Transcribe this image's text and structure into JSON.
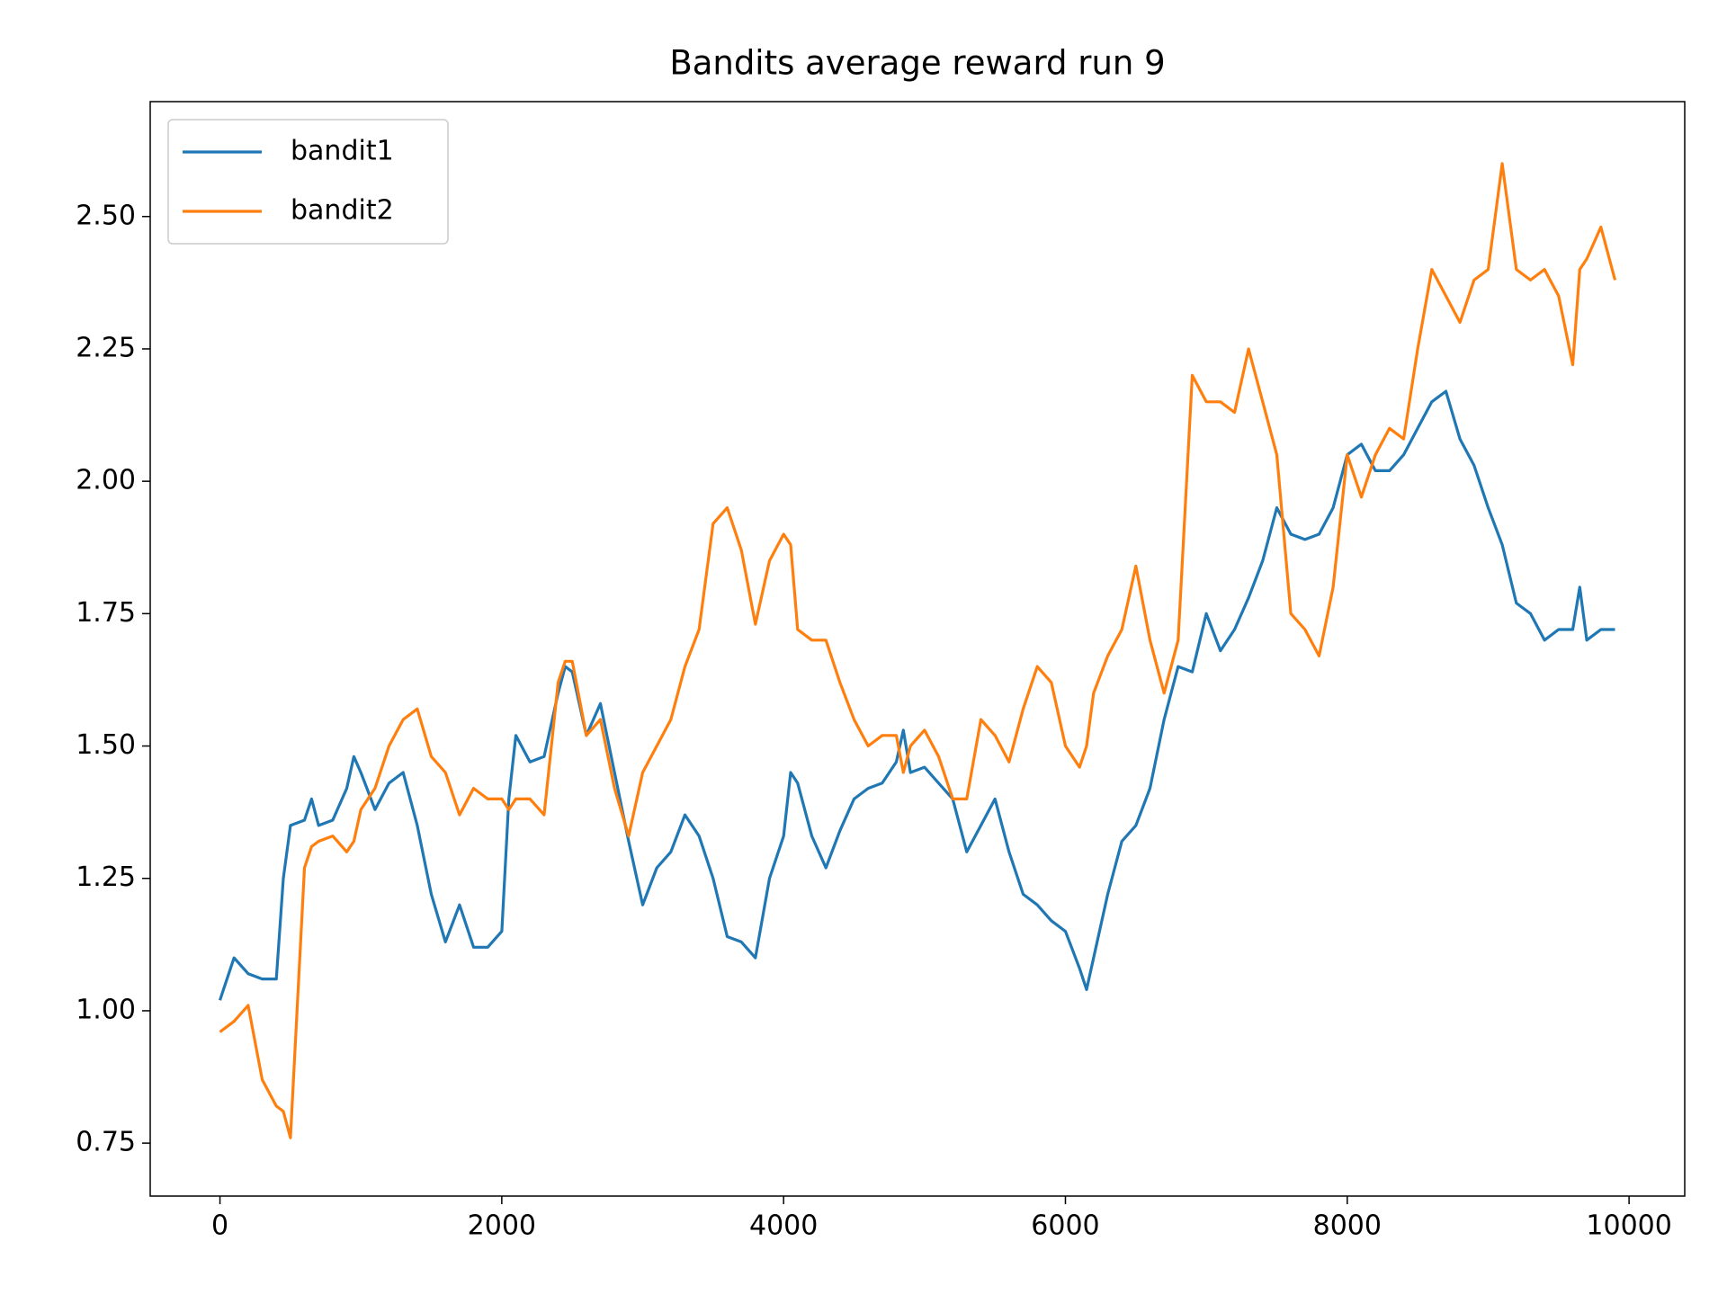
{
  "chart_data": {
    "type": "line",
    "title": "Bandits average reward run 9",
    "x": [
      0,
      100,
      200,
      300,
      400,
      450,
      500,
      600,
      650,
      700,
      800,
      900,
      950,
      1000,
      1100,
      1200,
      1300,
      1400,
      1500,
      1600,
      1700,
      1800,
      1900,
      2000,
      2050,
      2100,
      2200,
      2300,
      2400,
      2450,
      2500,
      2600,
      2700,
      2800,
      2900,
      3000,
      3100,
      3200,
      3300,
      3400,
      3500,
      3600,
      3700,
      3800,
      3900,
      4000,
      4050,
      4100,
      4200,
      4300,
      4400,
      4500,
      4600,
      4700,
      4800,
      4850,
      4900,
      5000,
      5100,
      5200,
      5300,
      5400,
      5500,
      5600,
      5700,
      5800,
      5900,
      6000,
      6100,
      6150,
      6200,
      6300,
      6400,
      6500,
      6600,
      6700,
      6800,
      6900,
      7000,
      7100,
      7200,
      7300,
      7400,
      7500,
      7600,
      7700,
      7800,
      7900,
      8000,
      8100,
      8200,
      8300,
      8400,
      8500,
      8600,
      8700,
      8800,
      8900,
      9000,
      9100,
      9200,
      9300,
      9400,
      9500,
      9600,
      9650,
      9700,
      9800,
      9900
    ],
    "series": [
      {
        "name": "bandit1",
        "color": "#1f77b4",
        "values": [
          1.02,
          1.1,
          1.07,
          1.06,
          1.06,
          1.25,
          1.35,
          1.36,
          1.4,
          1.35,
          1.36,
          1.42,
          1.48,
          1.45,
          1.38,
          1.43,
          1.45,
          1.35,
          1.22,
          1.13,
          1.2,
          1.12,
          1.12,
          1.15,
          1.4,
          1.52,
          1.47,
          1.48,
          1.6,
          1.65,
          1.64,
          1.52,
          1.58,
          1.45,
          1.32,
          1.2,
          1.27,
          1.3,
          1.37,
          1.33,
          1.25,
          1.14,
          1.13,
          1.1,
          1.25,
          1.33,
          1.45,
          1.43,
          1.33,
          1.27,
          1.34,
          1.4,
          1.42,
          1.43,
          1.47,
          1.53,
          1.45,
          1.46,
          1.43,
          1.4,
          1.3,
          1.35,
          1.4,
          1.3,
          1.22,
          1.2,
          1.17,
          1.15,
          1.08,
          1.04,
          1.1,
          1.22,
          1.32,
          1.35,
          1.42,
          1.55,
          1.65,
          1.64,
          1.75,
          1.68,
          1.72,
          1.78,
          1.85,
          1.95,
          1.9,
          1.89,
          1.9,
          1.95,
          2.05,
          2.07,
          2.02,
          2.02,
          2.05,
          2.1,
          2.15,
          2.17,
          2.08,
          2.03,
          1.95,
          1.88,
          1.77,
          1.75,
          1.7,
          1.72,
          1.72,
          1.8,
          1.7,
          1.72,
          1.72
        ]
      },
      {
        "name": "bandit2",
        "color": "#ff7f0e",
        "values": [
          0.96,
          0.98,
          1.01,
          0.87,
          0.82,
          0.81,
          0.76,
          1.27,
          1.31,
          1.32,
          1.33,
          1.3,
          1.32,
          1.38,
          1.42,
          1.5,
          1.55,
          1.57,
          1.48,
          1.45,
          1.37,
          1.42,
          1.4,
          1.4,
          1.38,
          1.4,
          1.4,
          1.37,
          1.62,
          1.66,
          1.66,
          1.52,
          1.55,
          1.42,
          1.33,
          1.45,
          1.5,
          1.55,
          1.65,
          1.72,
          1.92,
          1.95,
          1.87,
          1.73,
          1.85,
          1.9,
          1.88,
          1.72,
          1.7,
          1.7,
          1.62,
          1.55,
          1.5,
          1.52,
          1.52,
          1.45,
          1.5,
          1.53,
          1.48,
          1.4,
          1.4,
          1.55,
          1.52,
          1.47,
          1.57,
          1.65,
          1.62,
          1.5,
          1.46,
          1.5,
          1.6,
          1.67,
          1.72,
          1.84,
          1.7,
          1.6,
          1.7,
          2.2,
          2.15,
          2.15,
          2.13,
          2.25,
          2.15,
          2.05,
          1.75,
          1.72,
          1.67,
          1.8,
          2.05,
          1.97,
          2.05,
          2.1,
          2.08,
          2.25,
          2.4,
          2.35,
          2.3,
          2.38,
          2.4,
          2.6,
          2.4,
          2.38,
          2.4,
          2.35,
          2.22,
          2.4,
          2.42,
          2.48,
          2.38
        ]
      }
    ],
    "xlim": [
      -495,
      10395
    ],
    "ylim": [
      0.65,
      2.717
    ],
    "xticks": [
      0,
      2000,
      4000,
      6000,
      8000,
      10000
    ],
    "yticks": [
      0.75,
      {
        "value": 1.0,
        "label": "1.00"
      },
      1.25,
      {
        "value": 1.5,
        "label": "1.50"
      },
      1.75,
      {
        "value": 2.0,
        "label": "2.00"
      },
      2.25,
      {
        "value": 2.5,
        "label": "2.50"
      }
    ],
    "legend": "upper left",
    "grid": false
  }
}
